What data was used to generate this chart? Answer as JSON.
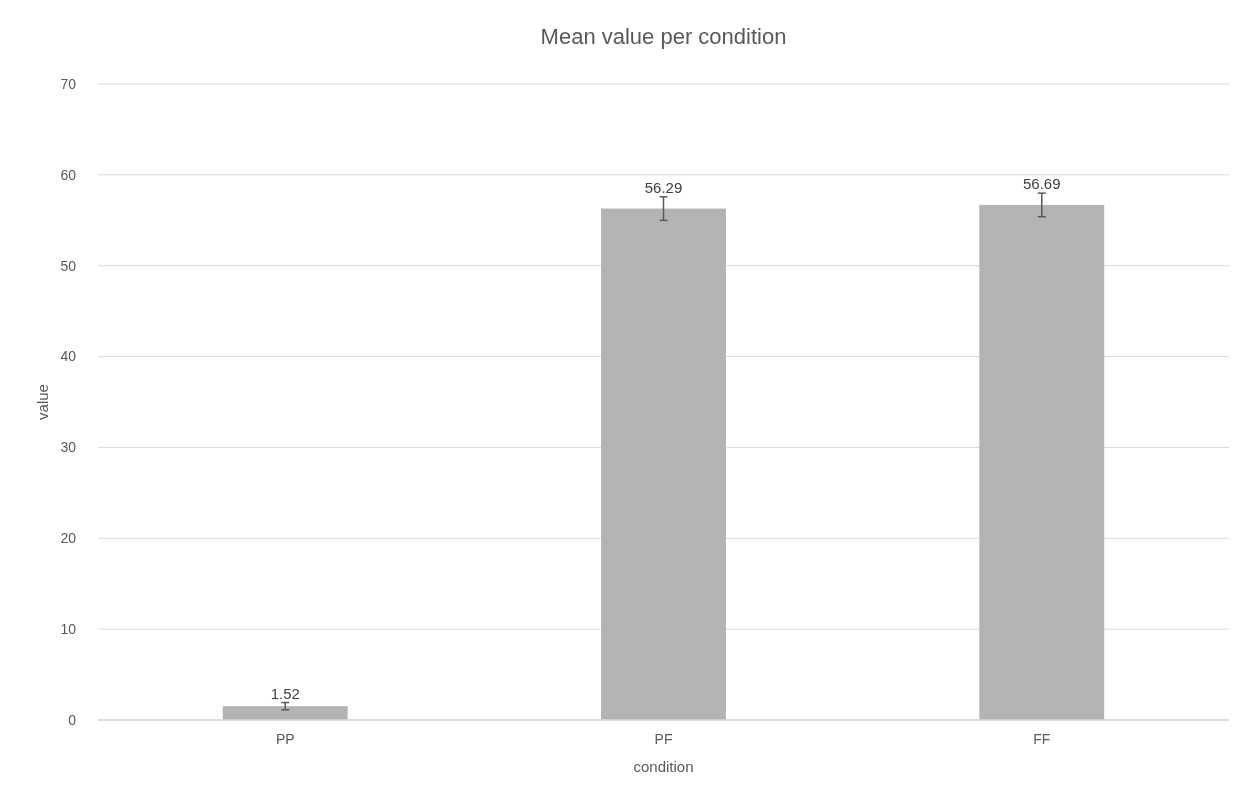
{
  "chart_data": {
    "type": "bar",
    "title": "Mean value per condition",
    "xlabel": "condition",
    "ylabel": "value",
    "categories": [
      "PP",
      "PF",
      "FF"
    ],
    "values": [
      1.52,
      56.29,
      56.69
    ],
    "errors": [
      0.4,
      1.3,
      1.3
    ],
    "color": "#b3b3b3",
    "ylim": [
      0,
      70
    ],
    "yticks": [
      0,
      10,
      20,
      30,
      40,
      50,
      60,
      70
    ],
    "grid": "y",
    "data_labels": true
  }
}
